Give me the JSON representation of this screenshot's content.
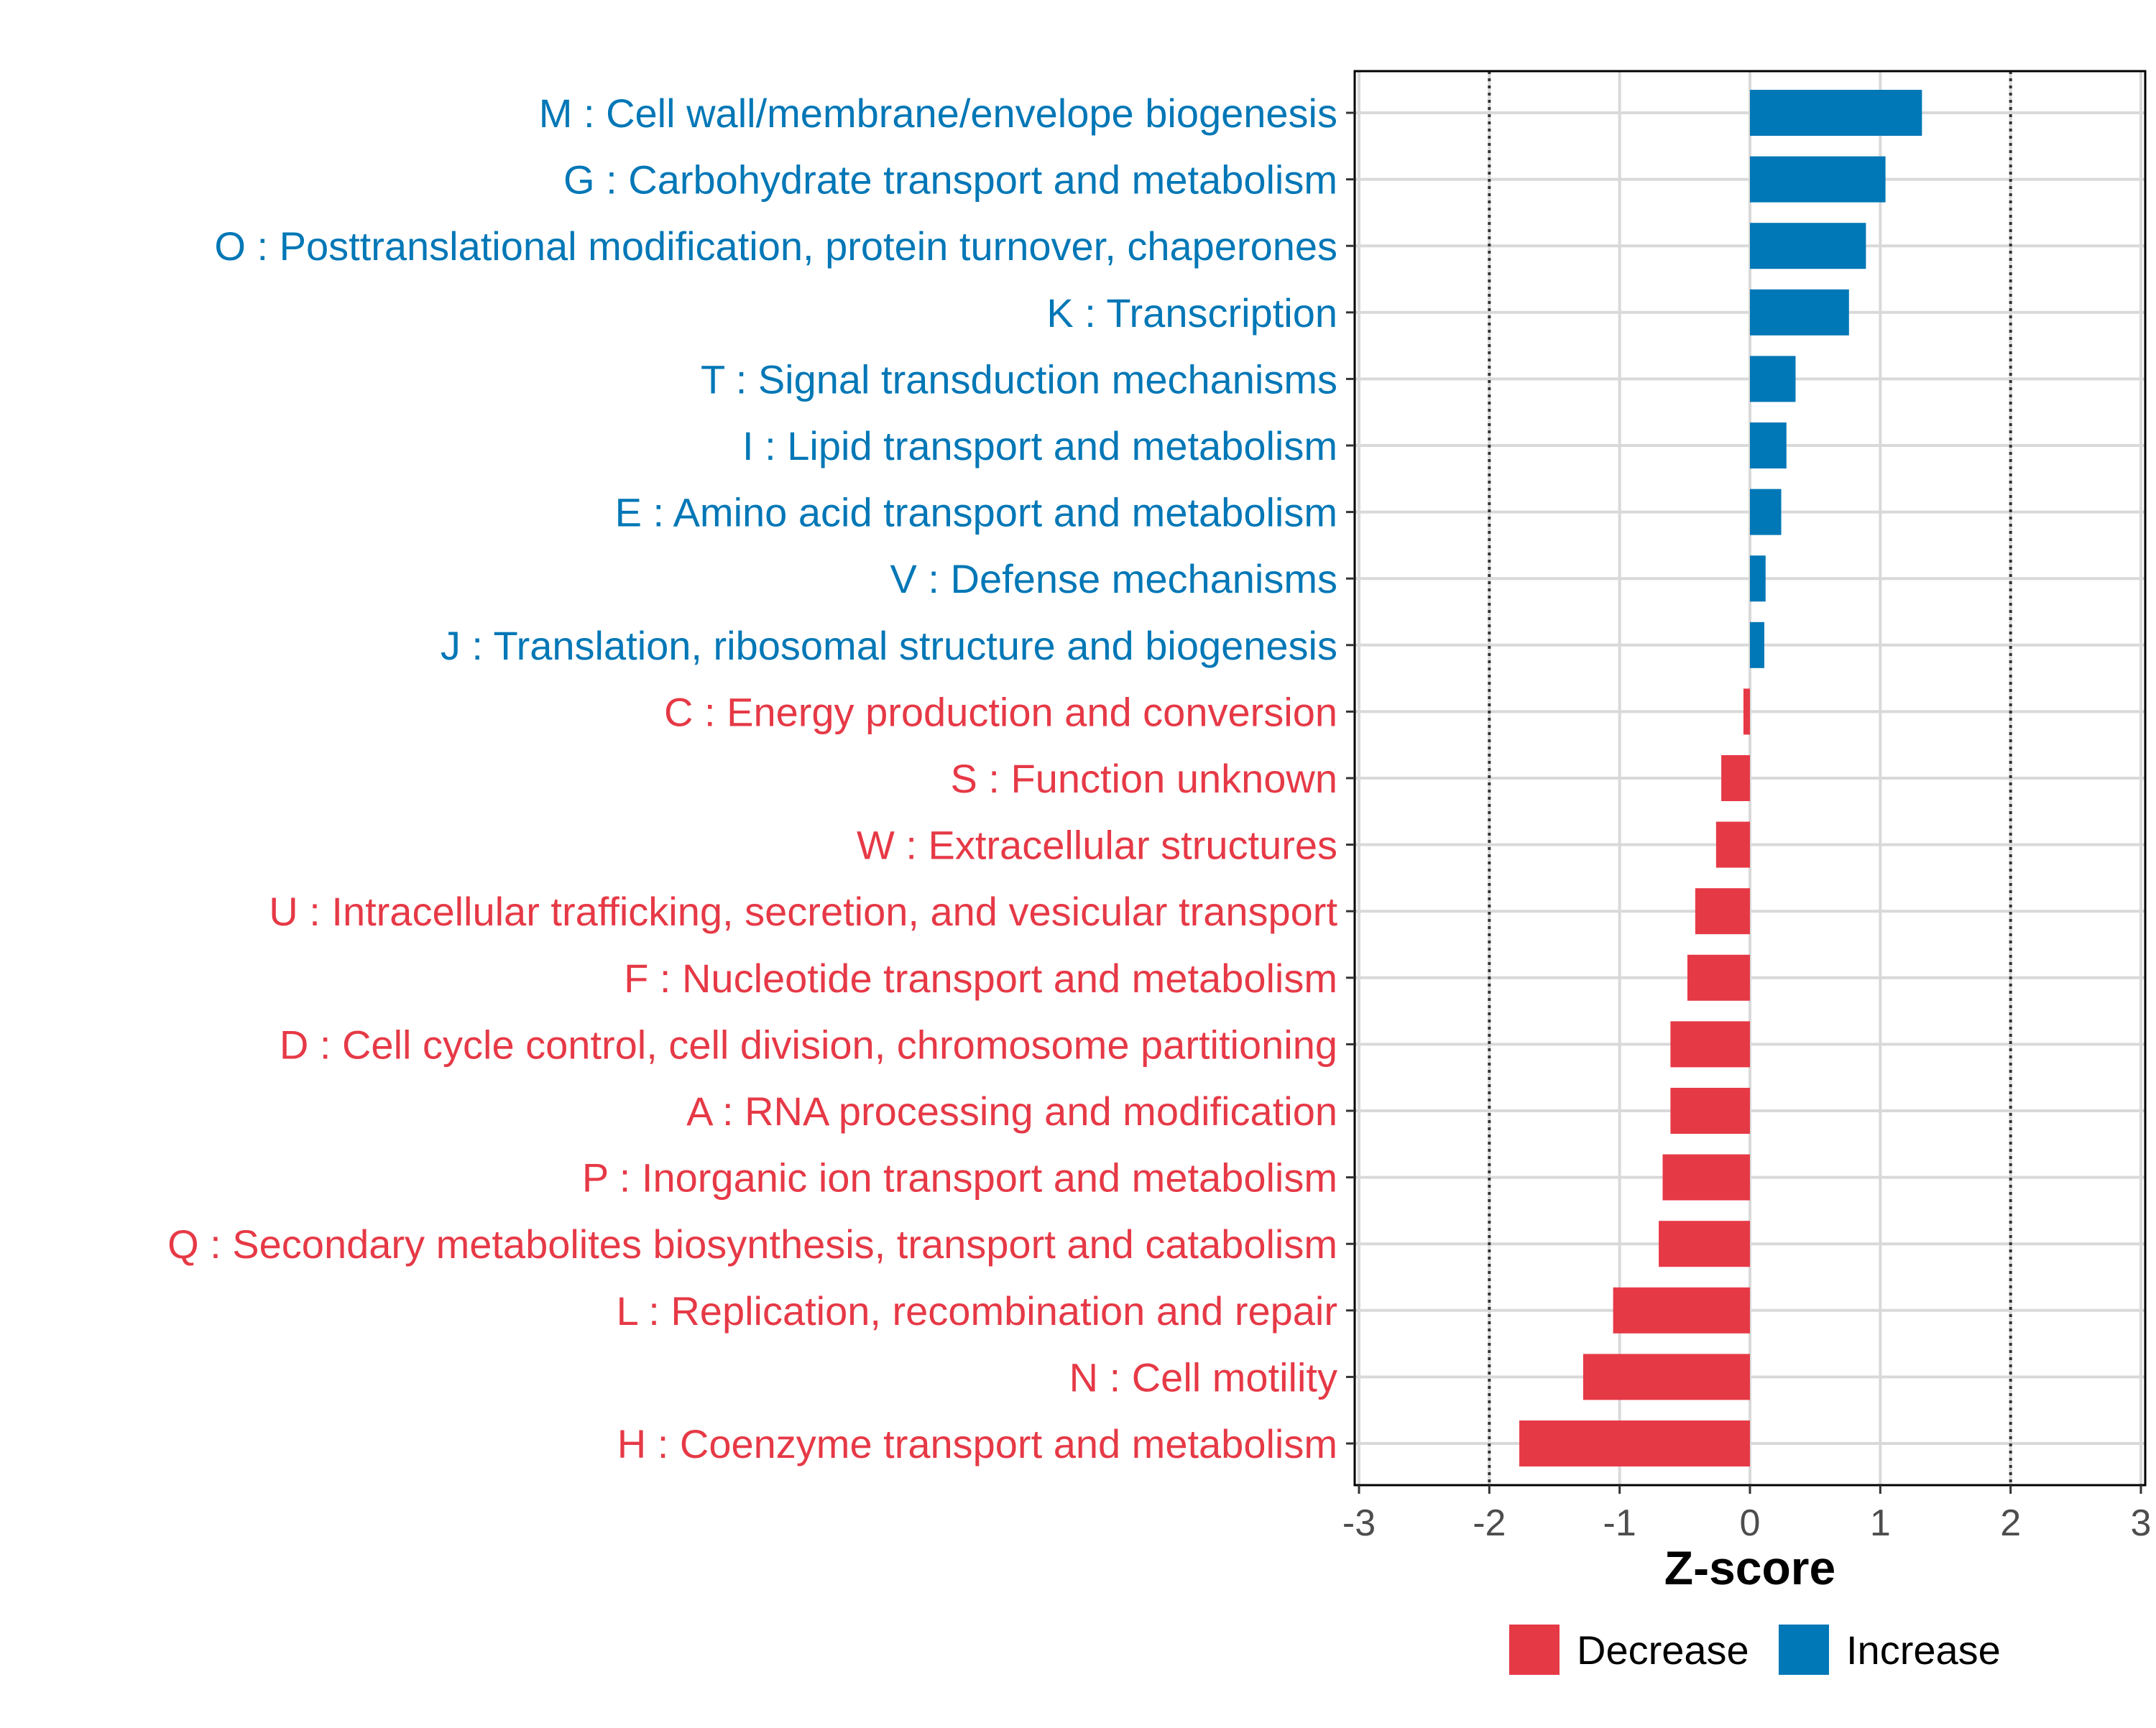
{
  "chart_data": {
    "type": "bar",
    "orientation": "horizontal",
    "categories": [
      "M : Cell wall/membrane/envelope biogenesis",
      "G : Carbohydrate transport and metabolism",
      "O : Posttranslational modification, protein turnover, chaperones",
      "K : Transcription",
      "T : Signal transduction mechanisms",
      "I : Lipid transport and metabolism",
      "E : Amino acid transport and metabolism",
      "V : Defense mechanisms",
      "J : Translation, ribosomal structure and biogenesis",
      "C : Energy production and conversion",
      "S : Function unknown",
      "W : Extracellular structures",
      "U : Intracellular trafficking, secretion, and vesicular transport",
      "F : Nucleotide transport and metabolism",
      "D : Cell cycle control, cell division, chromosome partitioning",
      "A : RNA processing and modification",
      "P : Inorganic ion transport and metabolism",
      "Q : Secondary metabolites biosynthesis, transport and catabolism",
      "L : Replication, recombination and repair",
      "N : Cell motility",
      "H : Coenzyme transport and metabolism"
    ],
    "values": [
      1.32,
      1.04,
      0.89,
      0.76,
      0.35,
      0.28,
      0.24,
      0.12,
      0.11,
      -0.05,
      -0.22,
      -0.26,
      -0.42,
      -0.48,
      -0.61,
      -0.61,
      -0.67,
      -0.7,
      -1.05,
      -1.28,
      -1.77
    ],
    "groups": [
      "Increase",
      "Increase",
      "Increase",
      "Increase",
      "Increase",
      "Increase",
      "Increase",
      "Increase",
      "Increase",
      "Decrease",
      "Decrease",
      "Decrease",
      "Decrease",
      "Decrease",
      "Decrease",
      "Decrease",
      "Decrease",
      "Decrease",
      "Decrease",
      "Decrease",
      "Decrease"
    ],
    "xlabel": "Z-score",
    "ylabel": "",
    "xlim": [
      -3,
      3
    ],
    "xticks": [
      -3,
      -2,
      -1,
      0,
      1,
      2,
      3
    ],
    "xtick_labels": [
      "-3",
      "-2",
      "-1",
      "0",
      "1",
      "2",
      "3"
    ],
    "reference_lines": [
      -2,
      2
    ],
    "grid": true,
    "legend": {
      "position": "bottom",
      "entries": [
        {
          "label": "Decrease",
          "color": "#e63946"
        },
        {
          "label": "Increase",
          "color": "#0077b6"
        }
      ]
    },
    "colors": {
      "Increase": "#0077b6",
      "Decrease": "#e63946"
    }
  }
}
